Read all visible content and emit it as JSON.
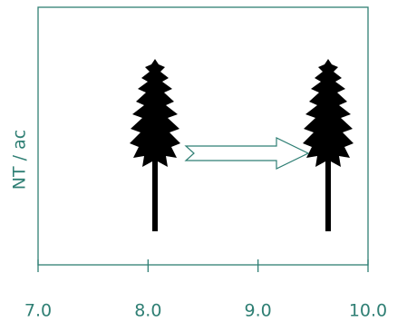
{
  "chart_data": {
    "type": "diagram",
    "ylabel": "NT / ac",
    "xlim": [
      7.0,
      10.0
    ],
    "xticks": [
      {
        "value": 7,
        "label": "7.0"
      },
      {
        "value": 8,
        "label": "8.0"
      },
      {
        "value": 9,
        "label": "9.0"
      },
      {
        "value": 10,
        "label": "10.0"
      }
    ]
  }
}
